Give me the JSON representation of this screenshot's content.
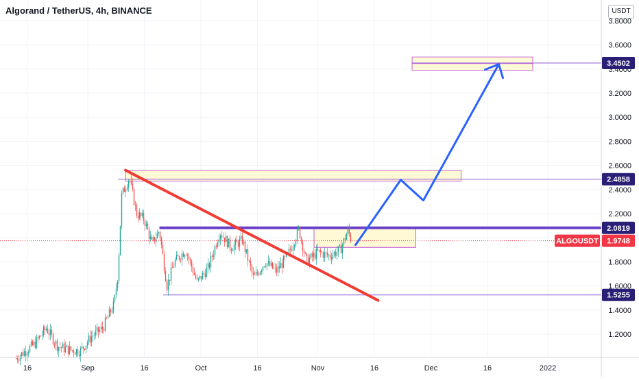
{
  "header": {
    "title": "Algorand / TetherUS, 4h, BINANCE",
    "currency": "USDT"
  },
  "colors": {
    "up": "#26a69a",
    "down": "#ef5350",
    "trendline": "#f23b33",
    "level": "#6a3fc8",
    "thin_level": "#8e5ad6",
    "zone_fill": "#fff9d6",
    "zone_border": "#c65dd4",
    "projection": "#2962ff",
    "price_tag": "#2a1f77",
    "last_price": "#f23645"
  },
  "chart_data": {
    "type": "candlestick",
    "symbol": "ALGOUSDT",
    "timeframe": "4h",
    "exchange": "BINANCE",
    "y_ticks": [
      1.2,
      1.4,
      1.6,
      1.8,
      2.0,
      2.2,
      2.4,
      2.6,
      2.8,
      3.0,
      3.2,
      3.4,
      3.6,
      3.8
    ],
    "y_tick_labels": [
      "1.2000",
      "1.4000",
      "1.6000",
      "1.8000",
      "2.0000",
      "2.2000",
      "2.4000",
      "2.6000",
      "2.8000",
      "3.0000",
      "3.2000",
      "3.4000",
      "3.6000",
      "3.8000"
    ],
    "x_ticks": [
      {
        "date": "2021-08-16",
        "label": "16"
      },
      {
        "date": "2021-09-01",
        "label": "Sep"
      },
      {
        "date": "2021-09-16",
        "label": "16"
      },
      {
        "date": "2021-10-01",
        "label": "Oct"
      },
      {
        "date": "2021-10-16",
        "label": "16"
      },
      {
        "date": "2021-11-01",
        "label": "Nov"
      },
      {
        "date": "2021-11-16",
        "label": "16"
      },
      {
        "date": "2021-12-01",
        "label": "Dec"
      },
      {
        "date": "2021-12-16",
        "label": "16"
      },
      {
        "date": "2022-01-01",
        "label": "2022"
      }
    ],
    "path_points": [
      {
        "date": "2021-08-13",
        "value": 1.0
      },
      {
        "date": "2021-08-18",
        "value": 1.12
      },
      {
        "date": "2021-08-21",
        "value": 1.25
      },
      {
        "date": "2021-08-24",
        "value": 1.1
      },
      {
        "date": "2021-08-27",
        "value": 1.07
      },
      {
        "date": "2021-08-30",
        "value": 1.06
      },
      {
        "date": "2021-09-02",
        "value": 1.18
      },
      {
        "date": "2021-09-05",
        "value": 1.25
      },
      {
        "date": "2021-09-08",
        "value": 1.45
      },
      {
        "date": "2021-09-09",
        "value": 1.7
      },
      {
        "date": "2021-09-10",
        "value": 2.35
      },
      {
        "date": "2021-09-12",
        "value": 2.5
      },
      {
        "date": "2021-09-14",
        "value": 2.2
      },
      {
        "date": "2021-09-16",
        "value": 2.15
      },
      {
        "date": "2021-09-18",
        "value": 1.95
      },
      {
        "date": "2021-09-20",
        "value": 2.06
      },
      {
        "date": "2021-09-22",
        "value": 1.6
      },
      {
        "date": "2021-09-24",
        "value": 1.8
      },
      {
        "date": "2021-09-27",
        "value": 1.9
      },
      {
        "date": "2021-09-30",
        "value": 1.63
      },
      {
        "date": "2021-10-03",
        "value": 1.75
      },
      {
        "date": "2021-10-06",
        "value": 2.05
      },
      {
        "date": "2021-10-09",
        "value": 1.92
      },
      {
        "date": "2021-10-12",
        "value": 1.98
      },
      {
        "date": "2021-10-15",
        "value": 1.66
      },
      {
        "date": "2021-10-18",
        "value": 1.8
      },
      {
        "date": "2021-10-21",
        "value": 1.72
      },
      {
        "date": "2021-10-24",
        "value": 1.85
      },
      {
        "date": "2021-10-27",
        "value": 2.07
      },
      {
        "date": "2021-10-29",
        "value": 1.8
      },
      {
        "date": "2021-11-01",
        "value": 1.88
      },
      {
        "date": "2021-11-04",
        "value": 1.85
      },
      {
        "date": "2021-11-07",
        "value": 1.9
      },
      {
        "date": "2021-11-09",
        "value": 2.06
      },
      {
        "date": "2021-11-10",
        "value": 1.9748
      }
    ],
    "trendline": {
      "start": {
        "date": "2021-09-11",
        "value": 2.56
      },
      "end": {
        "date": "2021-11-17",
        "value": 1.48
      }
    },
    "levels": [
      {
        "value": 2.0819,
        "label": "2.0819",
        "start": "2021-09-20"
      },
      {
        "value": 2.4858,
        "label": "2.4858",
        "start": "2021-09-09"
      },
      {
        "value": 1.5255,
        "label": "1.5255",
        "start": "2021-09-21"
      },
      {
        "value": 3.4502,
        "label": "3.4502",
        "start": "2021-11-26"
      }
    ],
    "last_price": {
      "value": 1.9748,
      "label": "1.9748",
      "symbol_label": "ALGOUSDT"
    },
    "zones": [
      {
        "start": "2021-09-11",
        "end": "2021-12-09",
        "top": 2.56,
        "bottom": 2.47
      },
      {
        "start": "2021-10-31",
        "end": "2021-11-27",
        "top": 2.08,
        "bottom": 1.92
      },
      {
        "start": "2021-11-26",
        "end": "2021-12-28",
        "top": 3.5,
        "bottom": 3.39
      }
    ],
    "projection": [
      {
        "date": "2021-11-11",
        "value": 1.94
      },
      {
        "date": "2021-11-23",
        "value": 2.48
      },
      {
        "date": "2021-11-29",
        "value": 2.31
      },
      {
        "date": "2021-12-19",
        "value": 3.44
      }
    ],
    "grid": true
  }
}
